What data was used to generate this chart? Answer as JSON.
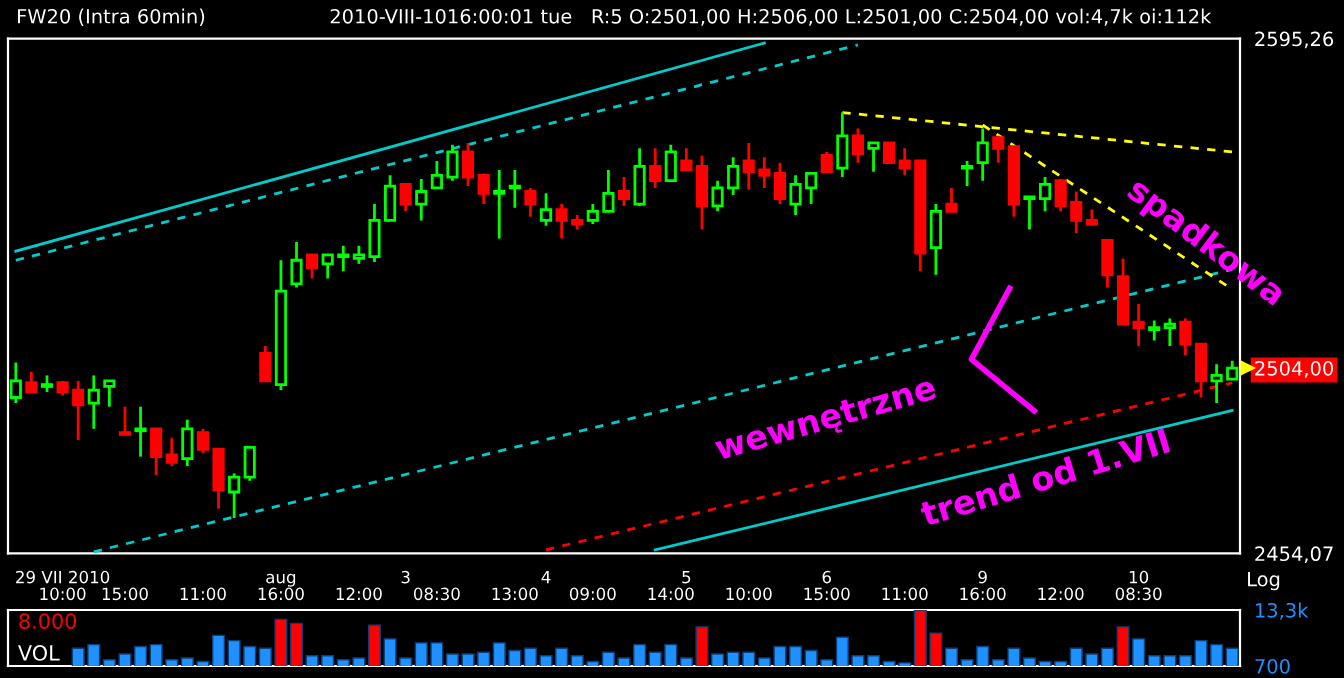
{
  "chart_data": [
    {
      "type": "candlestick",
      "title": "FW20 (Intra 60min)",
      "subtitle": "2010-VIII-1016:00:01 tue   R:5 O:2501,00 H:2506,00 L:2501,00 C:2504,00 vol:4,7k oi:112k",
      "categories": [
        null,
        null,
        null,
        "29 VII 2010\n10:00",
        null,
        null,
        null,
        "15:00",
        null,
        null,
        null,
        null,
        "11:00",
        null,
        null,
        null,
        null,
        "aug\n16:00",
        null,
        null,
        null,
        null,
        "12:00",
        null,
        null,
        "3\n",
        null,
        "08:30",
        null,
        null,
        null,
        null,
        "13:00",
        null,
        "4\n",
        null,
        null,
        "09:00",
        null,
        null,
        null,
        null,
        "14:00",
        "5\n",
        null,
        null,
        null,
        "10:00",
        null,
        null,
        null,
        null,
        "6\n15:00",
        null,
        null,
        null,
        null,
        "11:00",
        null,
        null,
        null,
        null,
        "9\n16:00",
        null,
        null,
        null,
        null,
        "12:00",
        null,
        null,
        null,
        null,
        "10\n08:30",
        null,
        null,
        null,
        null,
        null,
        null
      ],
      "ohlc": [
        [
          2496,
          2505.5,
          2494.5,
          2500.5
        ],
        [
          2500,
          2503,
          2497.5,
          2497.5
        ],
        [
          2499,
          2502,
          2497.5,
          2499.5
        ],
        [
          2500,
          2500.5,
          2496.5,
          2497.5
        ],
        [
          2498,
          2500.5,
          2484.5,
          2494
        ],
        [
          2494.5,
          2502,
          2487.5,
          2498
        ],
        [
          2499,
          2500.5,
          2493.5,
          2500.5
        ],
        [
          2486.5,
          2493.5,
          2486,
          2486
        ],
        [
          2487,
          2493.5,
          2480,
          2487.5
        ],
        [
          2487.5,
          2487.5,
          2475,
          2480
        ],
        [
          2480.5,
          2485,
          2477.5,
          2478.5
        ],
        [
          2479.5,
          2490,
          2477.5,
          2487.5
        ],
        [
          2486.5,
          2487.5,
          2481,
          2482
        ],
        [
          2482,
          2482,
          2466,
          2471
        ],
        [
          2470.5,
          2475.5,
          2463.5,
          2474.5
        ],
        [
          2474.5,
          2482.5,
          2473.5,
          2482.5
        ],
        [
          2508,
          2510,
          2500.5,
          2500.5
        ],
        [
          2499.5,
          2533.5,
          2498,
          2525
        ],
        [
          2527,
          2538.5,
          2526,
          2533.5
        ],
        [
          2535,
          2535,
          2528.5,
          2531.5
        ],
        [
          2532.5,
          2535,
          2528.5,
          2535
        ],
        [
          2534.5,
          2537.5,
          2530.5,
          2535
        ],
        [
          2534,
          2537.5,
          2532.5,
          2535
        ],
        [
          2534.5,
          2549,
          2533,
          2544.5
        ],
        [
          2544.5,
          2557,
          2544.5,
          2554
        ],
        [
          2554.5,
          2554.5,
          2547,
          2549
        ],
        [
          2549,
          2556,
          2544.5,
          2552.5
        ],
        [
          2553.5,
          2561,
          2553.5,
          2557
        ],
        [
          2556.5,
          2565.5,
          2555.5,
          2563.5
        ],
        [
          2563.5,
          2566,
          2554,
          2556.5
        ],
        [
          2557,
          2557.5,
          2549,
          2552
        ],
        [
          2552,
          2558.5,
          2539.5,
          2552.5
        ],
        [
          2553.5,
          2558.5,
          2548,
          2554
        ],
        [
          2552.5,
          2553.5,
          2545.5,
          2549
        ],
        [
          2544.5,
          2552,
          2543,
          2547.5
        ],
        [
          2547.5,
          2549,
          2539.5,
          2544.5
        ],
        [
          2544.5,
          2546,
          2542,
          2543.5
        ],
        [
          2544.5,
          2549,
          2543.5,
          2547
        ],
        [
          2547,
          2558.5,
          2547,
          2552
        ],
        [
          2552.5,
          2556.5,
          2548.5,
          2550.5
        ],
        [
          2549,
          2564.5,
          2548.5,
          2559.5
        ],
        [
          2559.5,
          2564.5,
          2553.5,
          2555.5
        ],
        [
          2555.5,
          2565.5,
          2555.5,
          2563.5
        ],
        [
          2561,
          2564.5,
          2558.5,
          2558.5
        ],
        [
          2559.5,
          2562.5,
          2542,
          2548.5
        ],
        [
          2548.5,
          2555.5,
          2547,
          2553.5
        ],
        [
          2553.5,
          2562,
          2551.5,
          2559.5
        ],
        [
          2561,
          2566,
          2553,
          2558
        ],
        [
          2558.5,
          2562,
          2553.5,
          2557
        ],
        [
          2557.5,
          2560.5,
          2549,
          2550.5
        ],
        [
          2549,
          2557,
          2546,
          2554.5
        ],
        [
          2553.5,
          2557.5,
          2549,
          2557.5
        ],
        [
          2562.5,
          2563.5,
          2558,
          2558
        ],
        [
          2559,
          2574.5,
          2556.5,
          2568
        ],
        [
          2568,
          2570,
          2560.5,
          2563
        ],
        [
          2564.5,
          2566,
          2558,
          2566
        ],
        [
          2566,
          2566,
          2560.5,
          2560.5
        ],
        [
          2561,
          2564.5,
          2557,
          2559
        ],
        [
          2561,
          2561,
          2530.5,
          2535.5
        ],
        [
          2537,
          2549,
          2529.5,
          2547
        ],
        [
          2549,
          2553.5,
          2547,
          2547
        ],
        [
          2559,
          2561,
          2554,
          2559.5
        ],
        [
          2560.5,
          2570,
          2555.5,
          2566
        ],
        [
          2567.5,
          2568,
          2560.5,
          2564.5
        ],
        [
          2565,
          2565,
          2545.5,
          2549
        ],
        [
          2550.5,
          2551,
          2542,
          2551
        ],
        [
          2550.5,
          2556.5,
          2547,
          2554.5
        ],
        [
          2555.5,
          2556,
          2547,
          2548.5
        ],
        [
          2549.5,
          2552.5,
          2541,
          2544.5
        ],
        [
          2544.5,
          2547.5,
          2543,
          2543.5
        ],
        [
          2539,
          2539,
          2526,
          2529.5
        ],
        [
          2529,
          2534,
          2516,
          2516
        ],
        [
          2516.5,
          2521.5,
          2510,
          2515
        ],
        [
          2514.5,
          2517,
          2511.5,
          2515
        ],
        [
          2515,
          2517.5,
          2510,
          2516
        ],
        [
          2516.5,
          2517.5,
          2507.5,
          2510.5
        ],
        [
          2510.5,
          2510.5,
          2496,
          2500.5
        ],
        [
          2500.5,
          2505,
          2494.5,
          2502
        ],
        [
          2501,
          2506,
          2501,
          2504
        ]
      ],
      "colors": [
        "#00ff00",
        "#ff0000",
        "#00ff00",
        "#ff0000",
        "#ff0000",
        "#00ff00",
        "#00ff00",
        "#ff0000",
        "#00ff00",
        "#ff0000",
        "#ff0000",
        "#00ff00",
        "#ff0000",
        "#ff0000",
        "#00ff00",
        "#00ff00",
        "#ff0000",
        "#00ff00",
        "#00ff00",
        "#ff0000",
        "#00ff00",
        "#00ff00",
        "#00ff00",
        "#00ff00",
        "#00ff00",
        "#ff0000",
        "#00ff00",
        "#00ff00",
        "#00ff00",
        "#ff0000",
        "#ff0000",
        "#00ff00",
        "#00ff00",
        "#ff0000",
        "#00ff00",
        "#ff0000",
        "#ff0000",
        "#00ff00",
        "#00ff00",
        "#ff0000",
        "#00ff00",
        "#ff0000",
        "#00ff00",
        "#ff0000",
        "#ff0000",
        "#00ff00",
        "#00ff00",
        "#ff0000",
        "#ff0000",
        "#ff0000",
        "#00ff00",
        "#00ff00",
        "#ff0000",
        "#00ff00",
        "#ff0000",
        "#00ff00",
        "#ff0000",
        "#ff0000",
        "#ff0000",
        "#00ff00",
        "#ff0000",
        "#00ff00",
        "#00ff00",
        "#ff0000",
        "#ff0000",
        "#00ff00",
        "#00ff00",
        "#ff0000",
        "#ff0000",
        "#ff0000",
        "#ff0000",
        "#ff0000",
        "#ff0000",
        "#00ff00",
        "#00ff00",
        "#ff0000",
        "#ff0000",
        "#00ff00",
        "#00ff00"
      ],
      "series": [
        {
          "type": "line",
          "color": "#00cccc",
          "line_style": "solid",
          "values": [
            2536,
            null,
            null,
            null,
            null,
            null,
            null,
            null,
            null,
            null,
            null,
            null,
            null,
            null,
            null,
            null,
            null,
            null,
            null,
            null,
            null,
            null,
            null,
            null,
            null,
            null,
            null,
            null,
            null,
            null,
            null,
            null,
            null,
            null,
            null,
            null,
            null,
            null,
            null,
            null,
            null,
            null,
            null,
            null,
            null,
            null,
            null,
            null,
            2594,
            null,
            null,
            null,
            null,
            null,
            null,
            null,
            null,
            null,
            null,
            null,
            null,
            null,
            null,
            null,
            null,
            null,
            null,
            null,
            null,
            null,
            null,
            null,
            null,
            null,
            null,
            null,
            null,
            null,
            null
          ]
        },
        {
          "type": "line",
          "color": "#00cccc",
          "line_style": "dashed",
          "values": [
            2533.5,
            null,
            null,
            null,
            null,
            null,
            null,
            null,
            null,
            null,
            null,
            null,
            null,
            null,
            null,
            null,
            null,
            null,
            null,
            null,
            null,
            null,
            null,
            null,
            null,
            null,
            null,
            null,
            null,
            null,
            null,
            null,
            null,
            null,
            null,
            null,
            null,
            null,
            null,
            null,
            null,
            null,
            null,
            null,
            null,
            null,
            null,
            null,
            null,
            null,
            null,
            null,
            null,
            null,
            2593.5,
            null,
            null,
            null,
            null,
            null,
            null,
            null,
            null,
            null,
            null,
            null,
            null,
            null,
            null,
            null,
            null,
            null,
            null,
            null,
            null,
            null,
            null,
            null,
            null
          ]
        },
        {
          "type": "line",
          "color": "#00cccc",
          "line_style": "dashed",
          "values": [
            null,
            null,
            null,
            null,
            null,
            2454.5,
            null,
            null,
            null,
            null,
            null,
            null,
            null,
            null,
            null,
            null,
            null,
            null,
            null,
            null,
            null,
            null,
            null,
            null,
            null,
            null,
            null,
            null,
            null,
            null,
            null,
            null,
            null,
            null,
            null,
            null,
            null,
            null,
            null,
            null,
            null,
            null,
            null,
            null,
            null,
            null,
            null,
            null,
            null,
            null,
            null,
            null,
            null,
            null,
            null,
            null,
            null,
            null,
            null,
            null,
            null,
            null,
            null,
            null,
            null,
            null,
            null,
            null,
            null,
            null,
            null,
            null,
            null,
            null,
            null,
            null,
            null,
            null,
            2531
          ]
        },
        {
          "type": "line",
          "color": "#ff0000",
          "line_style": "dashed",
          "values": [
            null,
            null,
            null,
            null,
            null,
            null,
            null,
            null,
            null,
            null,
            null,
            null,
            null,
            null,
            null,
            null,
            null,
            null,
            null,
            null,
            null,
            null,
            null,
            null,
            null,
            null,
            null,
            null,
            null,
            null,
            null,
            null,
            null,
            null,
            2455,
            null,
            null,
            null,
            null,
            null,
            null,
            null,
            null,
            null,
            null,
            null,
            null,
            null,
            null,
            null,
            null,
            null,
            null,
            null,
            null,
            null,
            null,
            null,
            null,
            null,
            null,
            null,
            null,
            null,
            null,
            null,
            null,
            null,
            null,
            null,
            null,
            null,
            null,
            null,
            null,
            null,
            null,
            null,
            2500
          ]
        },
        {
          "type": "line",
          "color": "#00cccc",
          "line_style": "solid",
          "values": [
            null,
            null,
            null,
            null,
            null,
            null,
            null,
            null,
            null,
            null,
            null,
            null,
            null,
            null,
            null,
            null,
            null,
            null,
            null,
            null,
            null,
            null,
            null,
            null,
            null,
            null,
            null,
            null,
            null,
            null,
            null,
            null,
            null,
            null,
            null,
            null,
            null,
            null,
            null,
            null,
            null,
            2455,
            null,
            null,
            null,
            null,
            null,
            null,
            null,
            null,
            null,
            null,
            null,
            null,
            null,
            null,
            null,
            null,
            null,
            null,
            null,
            null,
            null,
            null,
            null,
            null,
            null,
            null,
            null,
            null,
            null,
            null,
            null,
            null,
            null,
            null,
            null,
            null,
            2492.5
          ]
        },
        {
          "type": "line",
          "color": "#ffff00",
          "line_style": "dashed",
          "values": [
            null,
            null,
            null,
            null,
            null,
            null,
            null,
            null,
            null,
            null,
            null,
            null,
            null,
            null,
            null,
            null,
            null,
            null,
            null,
            null,
            null,
            null,
            null,
            null,
            null,
            null,
            null,
            null,
            null,
            null,
            null,
            null,
            null,
            null,
            null,
            null,
            null,
            null,
            null,
            null,
            null,
            null,
            null,
            null,
            null,
            null,
            null,
            null,
            null,
            null,
            null,
            null,
            null,
            2574.5,
            null,
            null,
            null,
            null,
            null,
            null,
            null,
            null,
            null,
            null,
            null,
            null,
            null,
            null,
            null,
            null,
            null,
            null,
            null,
            null,
            null,
            null,
            null,
            null,
            2563.5
          ]
        },
        {
          "type": "line",
          "color": "#ffff00",
          "line_style": "dashed",
          "values": [
            null,
            null,
            null,
            null,
            null,
            null,
            null,
            null,
            null,
            null,
            null,
            null,
            null,
            null,
            null,
            null,
            null,
            null,
            null,
            null,
            null,
            null,
            null,
            null,
            null,
            null,
            null,
            null,
            null,
            null,
            null,
            null,
            null,
            null,
            null,
            null,
            null,
            null,
            null,
            null,
            null,
            null,
            null,
            null,
            null,
            null,
            null,
            null,
            null,
            null,
            null,
            null,
            null,
            null,
            null,
            null,
            null,
            null,
            null,
            null,
            null,
            null,
            2571,
            null,
            null,
            null,
            null,
            null,
            null,
            null,
            null,
            null,
            null,
            null,
            null,
            null,
            null,
            null,
            2525.5
          ]
        }
      ],
      "ylim": [
        2454.07,
        2595.26
      ],
      "yticks": [
        {
          "value": 2595.26,
          "label": "2595,26"
        },
        {
          "value": 2504,
          "label": "2504,00"
        },
        {
          "value": 2454.07,
          "label": "2454,07"
        }
      ],
      "log": true,
      "annotations": [
        "spadkowa",
        "wewnętrzne",
        "trend od 1.VII",
        "Log"
      ]
    },
    {
      "type": "bar",
      "ylabel": "VOL",
      "categories": [
        null,
        null,
        null,
        null,
        null,
        null,
        null,
        null,
        null,
        null,
        null,
        null,
        null,
        null,
        null,
        null,
        null,
        null,
        null,
        null,
        null,
        null,
        null,
        null,
        null,
        null,
        null,
        null,
        null,
        null,
        null,
        null,
        null,
        null,
        null,
        null,
        null,
        null,
        null,
        null,
        null,
        null,
        null,
        null,
        null,
        null,
        null,
        null,
        null,
        null,
        null,
        null,
        null,
        null,
        null,
        null,
        null,
        null,
        null,
        null,
        null,
        null,
        null,
        null,
        null,
        null,
        null,
        null,
        null,
        null,
        null,
        null,
        null,
        null,
        null,
        null,
        null,
        null,
        null
      ],
      "values": [
        null,
        null,
        null,
        null,
        4700,
        5500,
        2100,
        3400,
        5100,
        5500,
        2100,
        2500,
        1700,
        7600,
        6400,
        5100,
        4700,
        11200,
        10300,
        3000,
        3000,
        2100,
        2500,
        9900,
        6800,
        2500,
        5900,
        5900,
        3400,
        3400,
        3800,
        5900,
        4200,
        4700,
        3000,
        4700,
        3000,
        1700,
        3800,
        2500,
        5500,
        3800,
        5500,
        2500,
        9500,
        3400,
        3800,
        3800,
        2500,
        5100,
        5100,
        4200,
        2100,
        7200,
        3000,
        3000,
        1700,
        1400,
        13300,
        8100,
        4700,
        2100,
        5100,
        2100,
        4700,
        2500,
        1700,
        1700,
        4700,
        3400,
        4700,
        9500,
        6800,
        3000,
        3000,
        3000,
        6400,
        5500,
        4700
      ],
      "colors": [
        "#1e90ff",
        "#1e90ff",
        "#1e90ff",
        "#1e90ff",
        "#1e90ff",
        "#1e90ff",
        "#1e90ff",
        "#1e90ff",
        "#1e90ff",
        "#1e90ff",
        "#1e90ff",
        "#1e90ff",
        "#1e90ff",
        "#1e90ff",
        "#1e90ff",
        "#1e90ff",
        "#1e90ff",
        "#ff0000",
        "#ff0000",
        "#1e90ff",
        "#1e90ff",
        "#1e90ff",
        "#1e90ff",
        "#ff0000",
        "#1e90ff",
        "#1e90ff",
        "#1e90ff",
        "#1e90ff",
        "#1e90ff",
        "#1e90ff",
        "#1e90ff",
        "#1e90ff",
        "#1e90ff",
        "#1e90ff",
        "#1e90ff",
        "#1e90ff",
        "#1e90ff",
        "#1e90ff",
        "#1e90ff",
        "#1e90ff",
        "#1e90ff",
        "#1e90ff",
        "#1e90ff",
        "#1e90ff",
        "#ff0000",
        "#1e90ff",
        "#1e90ff",
        "#1e90ff",
        "#1e90ff",
        "#1e90ff",
        "#1e90ff",
        "#1e90ff",
        "#1e90ff",
        "#1e90ff",
        "#1e90ff",
        "#1e90ff",
        "#1e90ff",
        "#1e90ff",
        "#ff0000",
        "#ff0000",
        "#1e90ff",
        "#1e90ff",
        "#1e90ff",
        "#1e90ff",
        "#1e90ff",
        "#1e90ff",
        "#1e90ff",
        "#1e90ff",
        "#1e90ff",
        "#1e90ff",
        "#1e90ff",
        "#ff0000",
        "#1e90ff",
        "#1e90ff",
        "#1e90ff",
        "#1e90ff",
        "#1e90ff",
        "#1e90ff",
        "#1e90ff"
      ],
      "ylim": [
        700,
        13300
      ],
      "yticks": [
        {
          "value": 700,
          "label": "700"
        },
        {
          "value": 13300,
          "label": "13,3k"
        }
      ],
      "tick_labels": "y",
      "annotations": [
        "8.000"
      ]
    }
  ]
}
